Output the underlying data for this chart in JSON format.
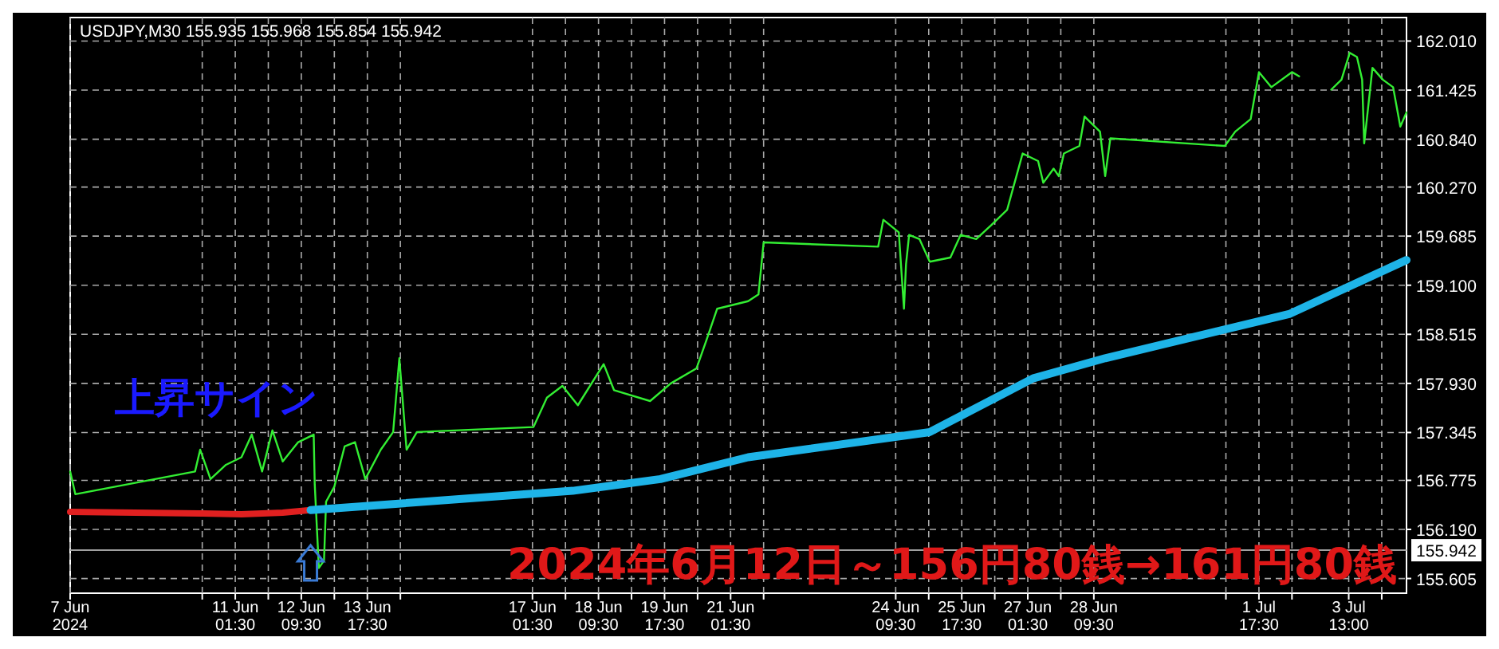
{
  "chart_data": {
    "type": "line",
    "title": "USDJPY,M30  155.935 155.968 155.854 155.942",
    "annotations": [
      "上昇サイン",
      "2024年6月12日～156円80銭→161円80銭"
    ],
    "xlim": [
      "2024-06-07T17:30",
      "2024-07-04T17:00"
    ],
    "xticks": [
      {
        "value": "2024-06-07T17:30",
        "label": "7 Jun 2024"
      },
      {
        "value": "2024-06-10T09:30",
        "label": null
      },
      {
        "value": "2024-06-11T01:30",
        "label": "11 Jun 01:30"
      },
      {
        "value": "2024-06-11T17:30",
        "label": null
      },
      {
        "value": "2024-06-12T09:30",
        "label": "12 Jun 09:30"
      },
      {
        "value": "2024-06-13T01:30",
        "label": null
      },
      {
        "value": "2024-06-13T17:30",
        "label": "13 Jun 17:30"
      },
      {
        "value": "2024-06-14T09:30",
        "label": null
      },
      {
        "value": "2024-06-17T01:30",
        "label": "17 Jun 01:30"
      },
      {
        "value": "2024-06-17T17:30",
        "label": null
      },
      {
        "value": "2024-06-18T09:30",
        "label": "18 Jun 09:30"
      },
      {
        "value": "2024-06-19T01:30",
        "label": null
      },
      {
        "value": "2024-06-19T17:30",
        "label": "19 Jun 17:30"
      },
      {
        "value": "2024-06-20T09:30",
        "label": null
      },
      {
        "value": "2024-06-21T01:30",
        "label": "21 Jun 01:30"
      },
      {
        "value": "2024-06-21T17:30",
        "label": null
      },
      {
        "value": "2024-06-24T09:30",
        "label": "24 Jun 09:30"
      },
      {
        "value": "2024-06-25T01:30",
        "label": null
      },
      {
        "value": "2024-06-25T17:30",
        "label": "25 Jun 17:30"
      },
      {
        "value": "2024-06-26T09:30",
        "label": null
      },
      {
        "value": "2024-06-27T01:30",
        "label": "27 Jun 01:30"
      },
      {
        "value": "2024-06-27T17:30",
        "label": null
      },
      {
        "value": "2024-06-28T09:30",
        "label": "28 Jun 09:30"
      },
      {
        "value": "2024-07-01T01:30",
        "label": null
      },
      {
        "value": "2024-07-01T17:30",
        "label": "1 Jul 17:30"
      },
      {
        "value": "2024-07-02T09:30",
        "label": null
      },
      {
        "value": "2024-07-03T13:00",
        "label": "3 Jul 13:00"
      },
      {
        "value": "2024-07-04T05:00",
        "label": null
      }
    ],
    "ylim": [
      155.43,
      162.29
    ],
    "yticks": [
      {
        "value": 155.605,
        "label": "155.605"
      },
      {
        "value": 156.19,
        "label": "156.190"
      },
      {
        "value": 156.775,
        "label": "156.775"
      },
      {
        "value": 157.345,
        "label": "157.345"
      },
      {
        "value": 157.93,
        "label": "157.930"
      },
      {
        "value": 158.515,
        "label": "158.515"
      },
      {
        "value": 159.1,
        "label": "159.100"
      },
      {
        "value": 159.685,
        "label": "159.685"
      },
      {
        "value": 160.27,
        "label": "160.270"
      },
      {
        "value": 160.84,
        "label": "160.840"
      },
      {
        "value": 161.425,
        "label": "161.425"
      },
      {
        "value": 162.01,
        "label": "162.010"
      }
    ],
    "grid": true,
    "marker": "none",
    "line_style": "solid",
    "ref_lines": [
      {
        "axis": "y",
        "value": 155.942,
        "label": "155.942",
        "color": "#a0a0a0"
      }
    ],
    "series": [
      {
        "color": "#33ee33",
        "x": [
          "2024-06-07T17:30",
          "2024-06-07T20:00",
          "2024-06-10T06:00",
          "2024-06-10T08:30",
          "2024-06-10T13:30",
          "2024-06-10T21:00",
          "2024-06-11T04:30",
          "2024-06-11T09:30",
          "2024-06-11T14:30",
          "2024-06-11T19:30",
          "2024-06-12T00:30",
          "2024-06-12T08:00",
          "2024-06-12T15:30",
          "2024-06-12T16:00",
          "2024-06-12T18:00",
          "2024-06-12T20:30",
          "2024-06-12T21:30",
          "2024-06-13T01:30",
          "2024-06-13T06:30",
          "2024-06-13T11:30",
          "2024-06-13T16:30",
          "2024-06-14T00:00",
          "2024-06-14T06:00",
          "2024-06-14T09:00",
          "2024-06-14T12:30",
          "2024-06-14T17:30",
          "2024-06-17T02:00",
          "2024-06-17T08:30",
          "2024-06-17T16:00",
          "2024-06-17T23:30",
          "2024-06-18T12:00",
          "2024-06-18T17:00",
          "2024-06-19T10:30",
          "2024-06-19T20:30",
          "2024-06-20T09:00",
          "2024-06-20T14:00",
          "2024-06-20T19:00",
          "2024-06-21T10:00",
          "2024-06-21T15:00",
          "2024-06-21T17:30",
          "2024-06-24T01:00",
          "2024-06-24T03:30",
          "2024-06-24T11:00",
          "2024-06-24T13:30",
          "2024-06-24T14:30",
          "2024-06-24T16:00",
          "2024-06-24T21:00",
          "2024-06-25T02:00",
          "2024-06-25T12:00",
          "2024-06-25T17:00",
          "2024-06-26T00:30",
          "2024-06-26T08:00",
          "2024-06-26T15:30",
          "2024-06-26T23:00",
          "2024-06-27T06:30",
          "2024-06-27T09:00",
          "2024-06-27T14:00",
          "2024-06-27T16:30",
          "2024-06-27T19:00",
          "2024-06-28T02:30",
          "2024-06-28T05:00",
          "2024-06-28T12:30",
          "2024-06-28T15:00",
          "2024-06-28T17:30",
          "2024-07-01T01:00",
          "2024-07-01T06:00",
          "2024-07-01T13:30",
          "2024-07-01T17:30",
          "2024-07-01T23:30",
          "2024-07-02T09:30",
          "2024-07-02T13:00",
          "2024-07-02T20:00",
          "2024-07-03T04:30",
          "2024-07-03T09:30",
          "2024-07-03T13:30",
          "2024-07-03T17:00",
          "2024-07-03T19:30",
          "2024-07-03T20:30",
          "2024-07-04T00:30",
          "2024-07-04T05:30",
          "2024-07-04T10:30",
          "2024-07-04T14:00",
          "2024-07-04T17:00"
        ],
        "values": [
          156.88,
          156.61,
          156.88,
          157.14,
          156.79,
          156.96,
          157.05,
          157.32,
          156.88,
          157.37,
          157.0,
          157.23,
          157.32,
          156.73,
          155.73,
          155.82,
          156.52,
          156.7,
          157.18,
          157.23,
          156.79,
          157.14,
          157.35,
          158.23,
          157.14,
          157.35,
          157.41,
          157.76,
          157.9,
          157.67,
          158.16,
          157.85,
          157.72,
          157.93,
          158.11,
          158.46,
          158.82,
          158.91,
          158.99,
          159.61,
          159.56,
          159.88,
          159.73,
          158.82,
          159.35,
          159.7,
          159.65,
          159.38,
          159.43,
          159.7,
          159.65,
          159.82,
          160.0,
          160.67,
          160.58,
          160.32,
          160.49,
          160.4,
          160.67,
          160.76,
          161.11,
          160.93,
          160.4,
          160.85,
          160.76,
          160.93,
          161.08,
          161.64,
          161.46,
          161.64,
          161.59,
          null,
          161.43,
          161.55,
          161.87,
          161.82,
          161.55,
          160.79,
          161.69,
          161.55,
          161.46,
          160.99,
          161.16
        ]
      },
      {
        "color": "#e02020",
        "x": [
          "2024-06-07T17:30",
          "2024-06-10T08:30",
          "2024-06-11T04:30",
          "2024-06-12T00:30",
          "2024-06-12T14:00"
        ],
        "values": [
          156.4,
          156.38,
          156.37,
          156.39,
          156.42
        ]
      },
      {
        "color": "#1eb4e8",
        "x": [
          "2024-06-12T14:00",
          "2024-06-17T21:00",
          "2024-06-19T15:30",
          "2024-06-21T10:00",
          "2024-06-25T02:00",
          "2024-06-27T04:00",
          "2024-06-28T15:00",
          "2024-07-02T08:30",
          "2024-07-04T17:00"
        ],
        "values": [
          156.42,
          156.65,
          156.79,
          157.05,
          157.35,
          157.99,
          158.23,
          158.76,
          159.4
        ]
      }
    ]
  }
}
